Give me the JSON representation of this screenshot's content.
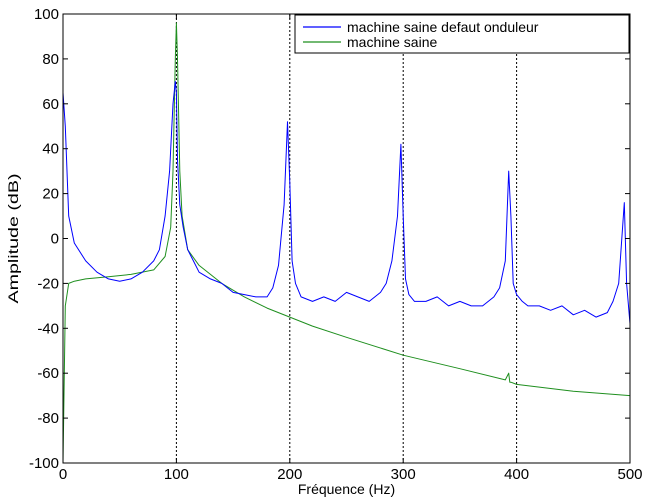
{
  "chart_data": {
    "type": "line",
    "title": "",
    "xlabel": "Fréquence (Hz)",
    "ylabel": "Amplitude (dB)",
    "xlim": [
      0,
      500
    ],
    "ylim": [
      -100,
      100
    ],
    "xticks": [
      0,
      100,
      200,
      300,
      400,
      500
    ],
    "yticks": [
      -100,
      -80,
      -60,
      -40,
      -20,
      0,
      20,
      40,
      60,
      80,
      100
    ],
    "grid": "dotted vertical lines at x = 100, 200, 300, 400",
    "legend_position": "top-right",
    "series": [
      {
        "name": "machine saine defaut onduleur",
        "color": "#0000ff",
        "x": [
          0,
          2,
          5,
          10,
          20,
          30,
          40,
          50,
          60,
          70,
          80,
          85,
          90,
          94,
          97,
          99,
          100,
          101,
          103,
          106,
          110,
          115,
          120,
          130,
          140,
          150,
          160,
          170,
          180,
          185,
          190,
          195,
          198,
          200,
          202,
          205,
          210,
          220,
          230,
          240,
          250,
          260,
          270,
          280,
          285,
          290,
          295,
          298,
          300,
          302,
          305,
          310,
          320,
          330,
          340,
          350,
          360,
          370,
          380,
          385,
          390,
          393,
          395,
          397,
          400,
          405,
          410,
          420,
          430,
          440,
          450,
          460,
          470,
          480,
          485,
          490,
          495,
          497,
          500
        ],
        "values": [
          65,
          50,
          10,
          -2,
          -10,
          -15,
          -18,
          -19,
          -18,
          -15,
          -10,
          -5,
          10,
          30,
          60,
          70,
          65,
          35,
          15,
          5,
          -5,
          -10,
          -15,
          -18,
          -20,
          -24,
          -25,
          -26,
          -26,
          -22,
          -12,
          15,
          52,
          25,
          -10,
          -20,
          -26,
          -28,
          -26,
          -28,
          -24,
          -26,
          -28,
          -24,
          -20,
          -10,
          10,
          42,
          10,
          -18,
          -25,
          -28,
          -28,
          -26,
          -30,
          -28,
          -30,
          -30,
          -26,
          -22,
          -10,
          30,
          10,
          -20,
          -25,
          -28,
          -30,
          -30,
          -32,
          -30,
          -34,
          -32,
          -35,
          -33,
          -28,
          -20,
          16,
          -20,
          -38
        ]
      },
      {
        "name": "machine saine",
        "color": "#1f8f1f",
        "x": [
          0,
          2,
          5,
          10,
          20,
          40,
          60,
          80,
          90,
          95,
          97,
          99,
          100,
          101,
          103,
          105,
          110,
          120,
          140,
          160,
          180,
          200,
          220,
          250,
          300,
          350,
          390,
          393,
          394,
          395,
          400,
          450,
          500
        ],
        "values": [
          -100,
          -30,
          -20,
          -19,
          -18,
          -17,
          -16,
          -14,
          -8,
          5,
          30,
          80,
          96,
          80,
          30,
          10,
          -5,
          -12,
          -20,
          -26,
          -31,
          -35,
          -39,
          -44,
          -52,
          -58,
          -63,
          -60,
          -64,
          -64,
          -65,
          -68,
          -70
        ]
      }
    ]
  }
}
